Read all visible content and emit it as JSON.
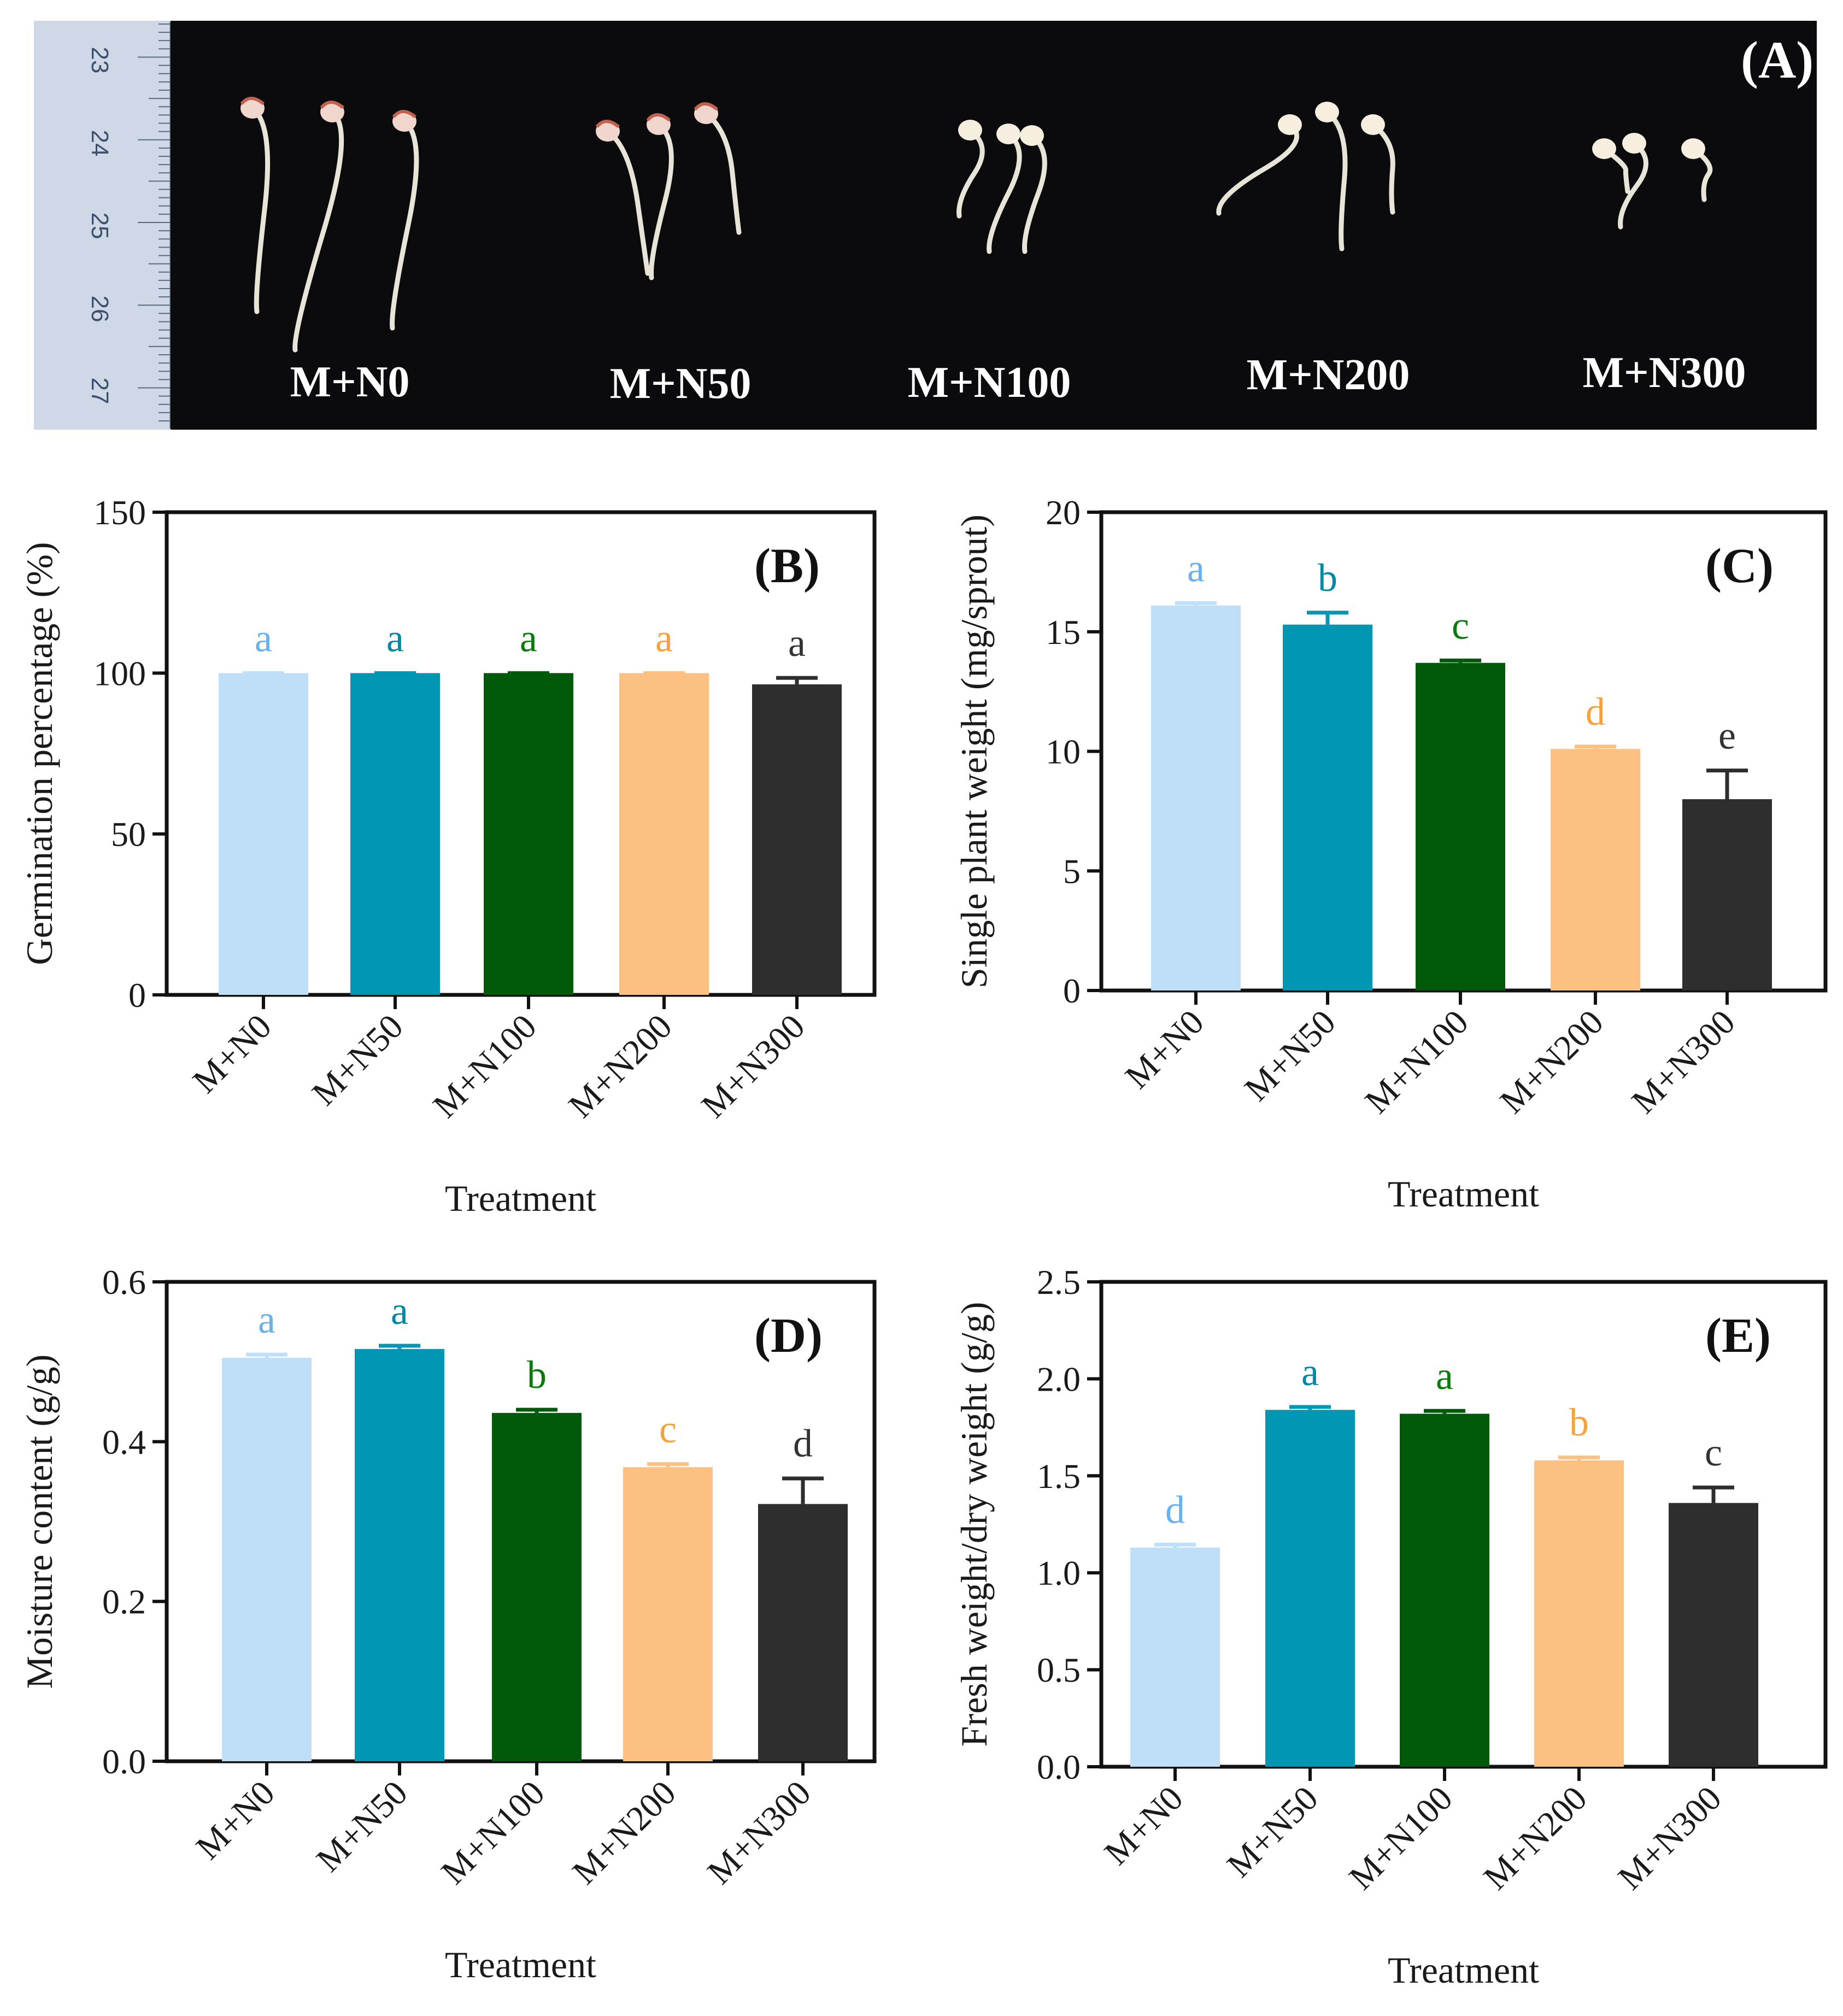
{
  "photo": {
    "panel_label": "(A)",
    "ruler_numbers": [
      "23",
      "24",
      "25",
      "26",
      "27"
    ],
    "treatment_labels": [
      "M+N0",
      "M+N50",
      "M+N100",
      "M+N200",
      "M+N300"
    ]
  },
  "colors": {
    "M+N0": "#bfdef8",
    "M+N50": "#0096b4",
    "M+N100": "#005a0a",
    "M+N200": "#fcc082",
    "M+N300": "#2e2e2e",
    "label_M+N0": "#6ab0ec",
    "label_M+N50": "#0088a2",
    "label_M+N100": "#0a7a0a",
    "label_M+N200": "#f5a23c",
    "label_M+N300": "#333333"
  },
  "chart_data": [
    {
      "type": "bar",
      "panel": "(B)",
      "categories": [
        "M+N0",
        "M+N50",
        "M+N100",
        "M+N200",
        "M+N300"
      ],
      "values": [
        100,
        100,
        100,
        100,
        96.5
      ],
      "errors": [
        0,
        0,
        0,
        0,
        2
      ],
      "letters": [
        "a",
        "a",
        "a",
        "a",
        "a"
      ],
      "xlabel": "Treatment",
      "ylabel": "Germination percentage (%)",
      "ylim": [
        0,
        150
      ],
      "yticks": [
        0,
        50,
        100,
        150
      ],
      "ytick_labels": [
        "0",
        "50",
        "100",
        "150"
      ]
    },
    {
      "type": "bar",
      "panel": "(C)",
      "categories": [
        "M+N0",
        "M+N50",
        "M+N100",
        "M+N200",
        "M+N300"
      ],
      "values": [
        16.1,
        15.3,
        13.7,
        10.1,
        8.0
      ],
      "errors": [
        0.1,
        0.5,
        0.1,
        0.1,
        1.2
      ],
      "letters": [
        "a",
        "b",
        "c",
        "d",
        "e"
      ],
      "xlabel": "Treatment",
      "ylabel": "Single plant weight (mg/sprout)",
      "ylim": [
        0,
        20
      ],
      "yticks": [
        0,
        5,
        10,
        15,
        20
      ],
      "ytick_labels": [
        "0",
        "5",
        "10",
        "15",
        "20"
      ]
    },
    {
      "type": "bar",
      "panel": "(D)",
      "categories": [
        "M+N0",
        "M+N50",
        "M+N100",
        "M+N200",
        "M+N300"
      ],
      "values": [
        0.505,
        0.516,
        0.436,
        0.368,
        0.322
      ],
      "errors": [
        0.004,
        0.004,
        0.004,
        0.004,
        0.032
      ],
      "letters": [
        "a",
        "a",
        "b",
        "c",
        "d"
      ],
      "xlabel": "Treatment",
      "ylabel": "Moisture content (g/g)",
      "ylim": [
        0,
        0.6
      ],
      "yticks": [
        0,
        0.2,
        0.4,
        0.6
      ],
      "ytick_labels": [
        "0.0",
        "0.2",
        "0.4",
        "0.6"
      ]
    },
    {
      "type": "bar",
      "panel": "(E)",
      "categories": [
        "M+N0",
        "M+N50",
        "M+N100",
        "M+N200",
        "M+N300"
      ],
      "values": [
        1.13,
        1.84,
        1.82,
        1.58,
        1.36
      ],
      "errors": [
        0.015,
        0.015,
        0.015,
        0.015,
        0.08
      ],
      "letters": [
        "d",
        "a",
        "a",
        "b",
        "c"
      ],
      "xlabel": "Treatment",
      "ylabel": "Fresh weight/dry weight (g/g)",
      "ylim": [
        0,
        2.5
      ],
      "yticks": [
        0,
        0.5,
        1.0,
        1.5,
        2.0,
        2.5
      ],
      "ytick_labels": [
        "0.0",
        "0.5",
        "1.0",
        "1.5",
        "2.0",
        "2.5"
      ]
    }
  ]
}
